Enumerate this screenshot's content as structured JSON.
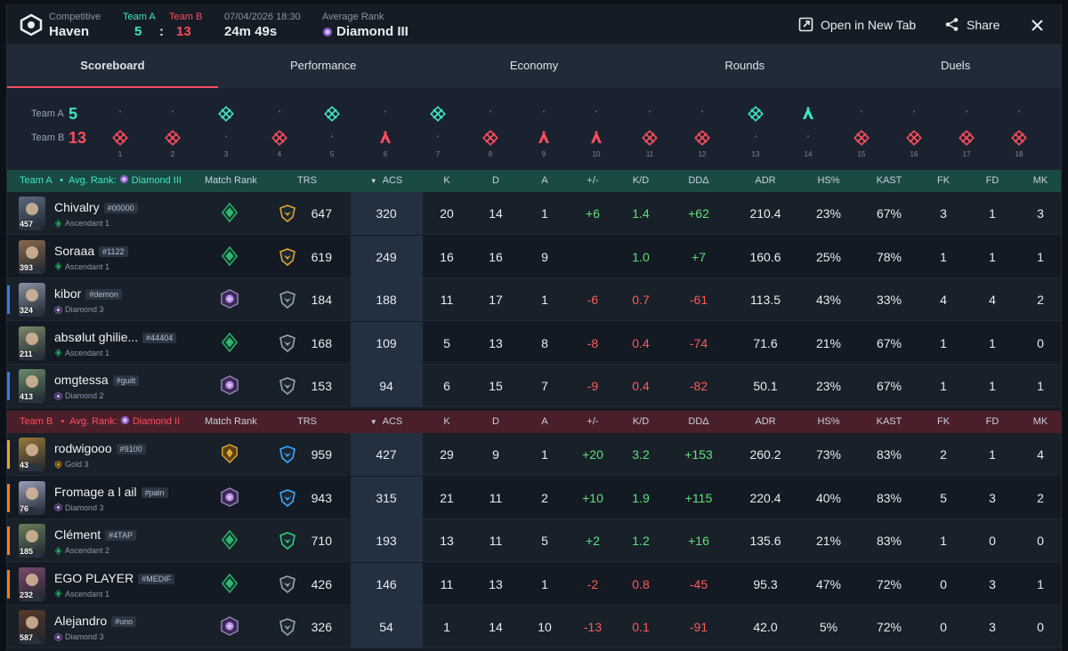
{
  "header": {
    "mode": "Competitive",
    "map": "Haven",
    "team_a_label": "Team A",
    "team_b_label": "Team B",
    "team_a_score": "5",
    "team_b_score": "13",
    "score_sep": ":",
    "datetime": "07/04/2026 18:30",
    "duration": "24m 49s",
    "avg_rank_label": "Average Rank",
    "avg_rank": "Diamond III",
    "open_new_tab": "Open in New Tab",
    "share": "Share"
  },
  "tabs": [
    "Scoreboard",
    "Performance",
    "Economy",
    "Rounds",
    "Duels"
  ],
  "rounds": {
    "team_a_label": "Team A",
    "team_b_label": "Team B",
    "team_a_score": "5",
    "team_b_score": "13",
    "numbers": [
      "1",
      "2",
      "3",
      "4",
      "5",
      "6",
      "7",
      "8",
      "9",
      "10",
      "11",
      "12",
      "13",
      "14",
      "15",
      "16",
      "17",
      "18"
    ],
    "winners": [
      "B",
      "B",
      "A",
      "B",
      "A",
      "B",
      "A",
      "B",
      "B",
      "B",
      "B",
      "B",
      "A",
      "A",
      "B",
      "B",
      "B",
      "B"
    ],
    "win_types": [
      "elim",
      "elim",
      "elim",
      "elim",
      "elim",
      "defuse",
      "elim",
      "elim",
      "defuse",
      "defuse",
      "elim",
      "elim",
      "elim",
      "defuse",
      "elim",
      "elim",
      "elim",
      "elim"
    ]
  },
  "columns": {
    "match_rank": "Match Rank",
    "trs": "TRS",
    "acs": "ACS",
    "k": "K",
    "d": "D",
    "a": "A",
    "pm": "+/-",
    "kd": "K/D",
    "dd": "DDΔ",
    "adr": "ADR",
    "hs": "HS%",
    "kast": "KAST",
    "fk": "FK",
    "fd": "FD",
    "mk": "MK"
  },
  "team_a": {
    "label": "Team A",
    "bullet": "•",
    "avg_label": "Avg. Rank:",
    "avg_rank": "Diamond III",
    "players": [
      {
        "name": "Chivalry",
        "tag": "#00000",
        "level": "457",
        "rank": "Ascendant 1",
        "trs": "647",
        "acs": "320",
        "k": "20",
        "d": "14",
        "a": "1",
        "pm": "+6",
        "kd": "1.4",
        "dd": "+62",
        "adr": "210.4",
        "hs": "23%",
        "kast": "67%",
        "fk": "3",
        "fd": "1",
        "mk": "3",
        "accent": ""
      },
      {
        "name": "Soraaa",
        "tag": "#1122",
        "level": "393",
        "rank": "Ascendant 1",
        "trs": "619",
        "acs": "249",
        "k": "16",
        "d": "16",
        "a": "9",
        "pm": "",
        "kd": "1.0",
        "dd": "+7",
        "adr": "160.6",
        "hs": "25%",
        "kast": "78%",
        "fk": "1",
        "fd": "1",
        "mk": "1",
        "accent": ""
      },
      {
        "name": "kibor",
        "tag": "#demon",
        "level": "324",
        "rank": "Diamond 3",
        "trs": "184",
        "acs": "188",
        "k": "11",
        "d": "17",
        "a": "1",
        "pm": "-6",
        "kd": "0.7",
        "dd": "-61",
        "adr": "113.5",
        "hs": "43%",
        "kast": "33%",
        "fk": "4",
        "fd": "4",
        "mk": "2",
        "accent": "#2f7fe0"
      },
      {
        "name": "absølut ghilie...",
        "tag": "#44404",
        "level": "211",
        "rank": "Ascendant 1",
        "trs": "168",
        "acs": "109",
        "k": "5",
        "d": "13",
        "a": "8",
        "pm": "-8",
        "kd": "0.4",
        "dd": "-74",
        "adr": "71.6",
        "hs": "21%",
        "kast": "67%",
        "fk": "1",
        "fd": "1",
        "mk": "0",
        "accent": ""
      },
      {
        "name": "omgtessa",
        "tag": "#guilt",
        "level": "413",
        "rank": "Diamond 2",
        "trs": "153",
        "acs": "94",
        "k": "6",
        "d": "15",
        "a": "7",
        "pm": "-9",
        "kd": "0.4",
        "dd": "-82",
        "adr": "50.1",
        "hs": "23%",
        "kast": "67%",
        "fk": "1",
        "fd": "1",
        "mk": "1",
        "accent": "#2f7fe0"
      }
    ]
  },
  "team_b": {
    "label": "Team B",
    "bullet": "•",
    "avg_label": "Avg. Rank:",
    "avg_rank": "Diamond II",
    "players": [
      {
        "name": "rodwigooo",
        "tag": "#9100",
        "level": "43",
        "rank": "Gold 3",
        "trs": "959",
        "acs": "427",
        "k": "29",
        "d": "9",
        "a": "1",
        "pm": "+20",
        "kd": "3.2",
        "dd": "+153",
        "adr": "260.2",
        "hs": "73%",
        "kast": "83%",
        "fk": "2",
        "fd": "1",
        "mk": "4",
        "accent": "#e0a830"
      },
      {
        "name": "Fromage a l ail",
        "tag": "#pain",
        "level": "76",
        "rank": "Diamond 3",
        "trs": "943",
        "acs": "315",
        "k": "21",
        "d": "11",
        "a": "2",
        "pm": "+10",
        "kd": "1.9",
        "dd": "+115",
        "adr": "220.4",
        "hs": "40%",
        "kast": "83%",
        "fk": "5",
        "fd": "3",
        "mk": "2",
        "accent": "#ff7a1a"
      },
      {
        "name": "Clément",
        "tag": "#4TAP",
        "level": "185",
        "rank": "Ascendant 2",
        "trs": "710",
        "acs": "193",
        "k": "13",
        "d": "11",
        "a": "5",
        "pm": "+2",
        "kd": "1.2",
        "dd": "+16",
        "adr": "135.6",
        "hs": "21%",
        "kast": "83%",
        "fk": "1",
        "fd": "0",
        "mk": "0",
        "accent": "#ff7a1a"
      },
      {
        "name": "EGO PLAYER",
        "tag": "#MEDIF",
        "level": "232",
        "rank": "Ascendant 1",
        "trs": "426",
        "acs": "146",
        "k": "11",
        "d": "13",
        "a": "1",
        "pm": "-2",
        "kd": "0.8",
        "dd": "-45",
        "adr": "95.3",
        "hs": "47%",
        "kast": "72%",
        "fk": "0",
        "fd": "3",
        "mk": "1",
        "accent": "#ff7a1a"
      },
      {
        "name": "Alejandro",
        "tag": "#uno",
        "level": "587",
        "rank": "Diamond 3",
        "trs": "326",
        "acs": "54",
        "k": "1",
        "d": "14",
        "a": "10",
        "pm": "-13",
        "kd": "0.1",
        "dd": "-91",
        "adr": "42.0",
        "hs": "5%",
        "kast": "72%",
        "fk": "0",
        "fd": "3",
        "mk": "0",
        "accent": ""
      }
    ]
  },
  "colors": {
    "team_a": "#3ee6c1",
    "team_b": "#ff4d5e",
    "positive": "#5ee07a",
    "negative": "#ff5a5a",
    "ascendant": "#2fb873",
    "diamond": "#b78ae8",
    "gold": "#e0a830"
  }
}
